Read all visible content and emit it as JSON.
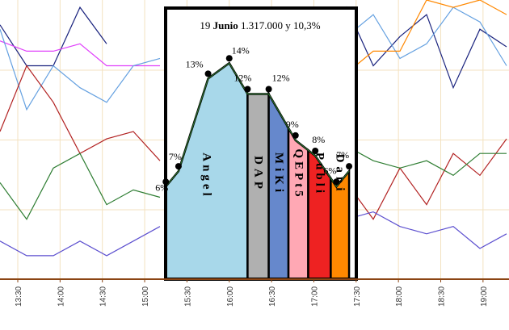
{
  "chart_data": {
    "type": "area",
    "title": {
      "day": "19",
      "month": "Junio",
      "rest": "1.317.000 y 10,3%"
    },
    "x_tick_labels": [
      "13:30",
      "14:00",
      "14:30",
      "15:00",
      "15:30",
      "16:00",
      "16:30",
      "17:00",
      "17:30",
      "18:00",
      "18:30",
      "19:00"
    ],
    "x_tick_minutes": [
      810,
      840,
      870,
      900,
      930,
      960,
      990,
      1020,
      1050,
      1080,
      1110,
      1140
    ],
    "xlim": [
      795,
      1147
    ],
    "ylim": [
      0,
      16
    ],
    "grid": true,
    "points": [
      {
        "t": 915,
        "v": 6,
        "label": "6%"
      },
      {
        "t": 924,
        "v": 7,
        "label": "7%"
      },
      {
        "t": 945,
        "v": 13,
        "label": "13%"
      },
      {
        "t": 960,
        "v": 14,
        "label": "14%"
      },
      {
        "t": 973,
        "v": 12,
        "label": "12%"
      },
      {
        "t": 988,
        "v": 12,
        "label": "12%"
      },
      {
        "t": 1007,
        "v": 9,
        "label": "9%"
      },
      {
        "t": 1021,
        "v": 8,
        "label": "8%"
      },
      {
        "t": 1036,
        "v": 6,
        "label": "6%"
      },
      {
        "t": 1045,
        "v": 7,
        "label": "7%"
      }
    ],
    "segments": [
      {
        "name": "Angel",
        "from": 912,
        "to": 973,
        "color": "#a8d8ea"
      },
      {
        "name": "DAP",
        "from": 973,
        "to": 988,
        "color": "#b0b0b0"
      },
      {
        "name": "MiKi",
        "from": 988,
        "to": 1002,
        "color": "#6688cc"
      },
      {
        "name": "QEPt5",
        "from": 1002,
        "to": 1016,
        "color": "#ffa8b4"
      },
      {
        "name": "Publi",
        "from": 1016,
        "to": 1032,
        "color": "#ee2222"
      },
      {
        "name": "Dani",
        "from": 1032,
        "to": 1045,
        "color": "#ff8800"
      }
    ],
    "background_series": [
      {
        "name": "blue",
        "color": "#1a237e",
        "values": [
          16.3,
          13.5,
          13.5,
          17.5,
          15.0,
          null,
          null,
          null,
          null,
          null,
          null,
          17.0,
          13.5,
          17.5,
          13.5,
          15.5,
          17.0,
          12.0,
          16.0,
          14.8
        ]
      },
      {
        "name": "magenta",
        "color": "#e040fb",
        "values": [
          15.2,
          14.5,
          14.5,
          15.0,
          13.5,
          13.5,
          13.5,
          null,
          null,
          null,
          null,
          null,
          null,
          null,
          null,
          null,
          null,
          null,
          null,
          null
        ]
      },
      {
        "name": "light-blue",
        "color": "#64a0e0",
        "values": [
          16.0,
          10.5,
          13.5,
          12.0,
          11.0,
          13.5,
          14.0,
          null,
          null,
          null,
          null,
          16.0,
          16.5,
          15.5,
          17.0,
          14.0,
          15.0,
          17.5,
          16.5,
          13.5
        ]
      },
      {
        "name": "red",
        "color": "#b22222",
        "values": [
          9.0,
          13.5,
          11.0,
          7.5,
          8.5,
          9.0,
          7.0,
          null,
          null,
          null,
          null,
          8.5,
          7.5,
          5.5,
          3.0,
          6.5,
          4.0,
          7.5,
          6.0,
          8.5
        ]
      },
      {
        "name": "green",
        "color": "#2e7d32",
        "values": [
          5.5,
          3.0,
          6.5,
          7.5,
          4.0,
          5.0,
          4.5,
          null,
          null,
          null,
          null,
          6.0,
          6.5,
          8.0,
          7.0,
          6.5,
          7.0,
          6.0,
          7.5,
          7.5
        ]
      },
      {
        "name": "purple",
        "color": "#5c4fcf",
        "values": [
          1.5,
          0.5,
          0.5,
          1.5,
          0.5,
          1.5,
          2.5,
          null,
          null,
          null,
          null,
          5.0,
          4.5,
          3.0,
          3.5,
          2.5,
          2.0,
          2.5,
          1.0,
          2.0
        ]
      },
      {
        "name": "orange",
        "color": "#ff8800",
        "values": [
          null,
          null,
          null,
          null,
          null,
          null,
          null,
          null,
          null,
          null,
          null,
          2.0,
          6.5,
          13.0,
          14.5,
          14.5,
          18.0,
          17.5,
          18.0,
          17.0
        ]
      }
    ]
  }
}
